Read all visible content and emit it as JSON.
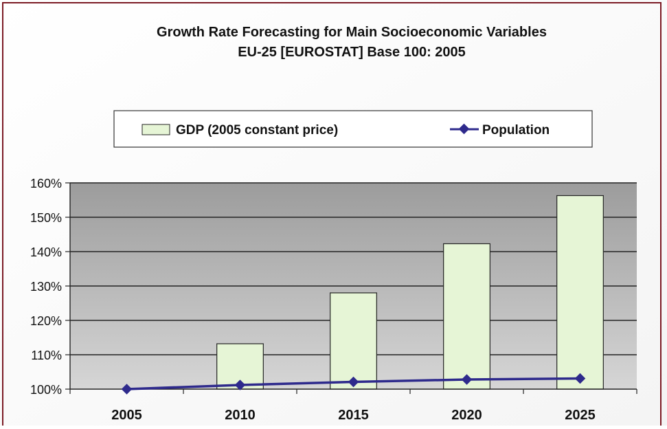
{
  "chart_data": {
    "type": "bar",
    "title": "Growth Rate Forecasting for Main Socioeconomic Variables",
    "subtitle": "EU-25 [EUROSTAT] Base 100: 2005",
    "categories": [
      "2005",
      "2010",
      "2015",
      "2020",
      "2025"
    ],
    "series": [
      {
        "name": "GDP (2005 constant price)",
        "kind": "bar",
        "values": [
          100,
          113.2,
          128,
          142.3,
          156.3
        ]
      },
      {
        "name": "Population",
        "kind": "line",
        "values": [
          100,
          101.2,
          102.1,
          102.8,
          103.1
        ]
      }
    ],
    "ylim": [
      100,
      160
    ],
    "yticks": [
      100,
      110,
      120,
      130,
      140,
      150,
      160
    ],
    "ytick_labels": [
      "100%",
      "110%",
      "120%",
      "130%",
      "140%",
      "150%",
      "160%"
    ],
    "xlabel": "",
    "ylabel": "",
    "legend_position": "top",
    "grid": true,
    "colors": {
      "bar_fill": "#e6f5d6",
      "bar_stroke": "#222222",
      "line": "#2e2a8c",
      "plot_bg": "#a6a6a6",
      "grid": "#222222",
      "border": "#7b1a24"
    }
  }
}
